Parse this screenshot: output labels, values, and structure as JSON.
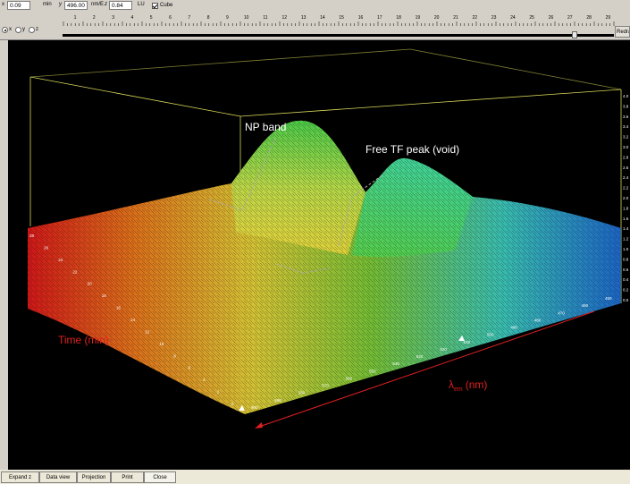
{
  "toolbar": {
    "x_label": "x",
    "x_value": "0.09",
    "x_unit": "min",
    "y_label": "y",
    "y_value": "496.00",
    "y_unit": "nm/E",
    "z_label": "z",
    "z_value": "0.84",
    "z_unit": "LU",
    "cube_label": "Cube",
    "cube_checked": true,
    "radio_x": "x",
    "radio_y": "y",
    "radio_z": "z",
    "redraw_label": "Redra",
    "ruler_numbers": [
      "1",
      "2",
      "3",
      "4",
      "5",
      "6",
      "7",
      "8",
      "9",
      "10",
      "11",
      "12",
      "13",
      "14",
      "15",
      "16",
      "17",
      "18",
      "19",
      "20",
      "21",
      "22",
      "23",
      "24",
      "25",
      "26",
      "27",
      "28",
      "29"
    ]
  },
  "chart_data": {
    "type": "surface",
    "annotations": {
      "np_band": "NP band",
      "free_tf_peak": "Free TF peak (void)",
      "time_axis": "Time (min)",
      "lambda_symbol": "λ",
      "lambda_subscript": "em",
      "lambda_unit": "(nm)"
    },
    "time_ticks": [
      "0",
      "2",
      "4",
      "6",
      "8",
      "10",
      "12",
      "14",
      "16",
      "18",
      "20",
      "22",
      "24",
      "26",
      "28"
    ],
    "wavelength_ticks": [
      "450",
      "460",
      "470",
      "480",
      "490",
      "500",
      "510",
      "520",
      "530",
      "540",
      "550",
      "560",
      "570",
      "580",
      "590",
      "600"
    ],
    "z_ticks": [
      "0.0",
      "0.2",
      "0.4",
      "0.6",
      "0.8",
      "1.0",
      "1.2",
      "1.4",
      "1.6",
      "1.8",
      "2.0",
      "2.2",
      "2.4",
      "2.6",
      "2.8",
      "3.0",
      "3.2",
      "3.4",
      "3.6",
      "3.8",
      "4.0"
    ],
    "colors": {
      "background": "#000000",
      "cube_edge": "#d8d85a",
      "red_annotation": "#e02020",
      "label_white": "#ffffff"
    }
  },
  "bottom_tabs": [
    "Expand z",
    "Data view",
    "Projection",
    "Print",
    "Close"
  ]
}
